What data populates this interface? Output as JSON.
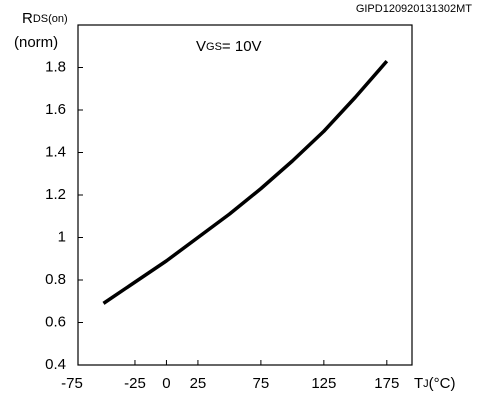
{
  "chart_data": {
    "type": "line",
    "code": "GIPD120920131302MT",
    "y_label": {
      "main": "R",
      "sub": "DS(on)",
      "unit": "(norm)"
    },
    "x_label": {
      "main": "T",
      "sub": "J",
      "unit": "(°C)"
    },
    "annotation": {
      "main": "V",
      "sub": "GS",
      "rest": "= 10V"
    },
    "x": [
      -50,
      -25,
      0,
      25,
      50,
      75,
      100,
      125,
      150,
      175
    ],
    "series": [
      {
        "color": "#000000",
        "values": [
          0.69,
          0.79,
          0.89,
          1.0,
          1.11,
          1.23,
          1.36,
          1.5,
          1.66,
          1.83
        ]
      }
    ],
    "xlim": [
      -75,
      195
    ],
    "xticks": [
      -75,
      -25,
      0,
      25,
      75,
      125,
      175
    ],
    "ylim": [
      0.4,
      2.0
    ],
    "yticks": [
      0.4,
      0.6,
      0.8,
      1,
      1.2,
      1.4,
      1.6,
      1.8
    ]
  }
}
